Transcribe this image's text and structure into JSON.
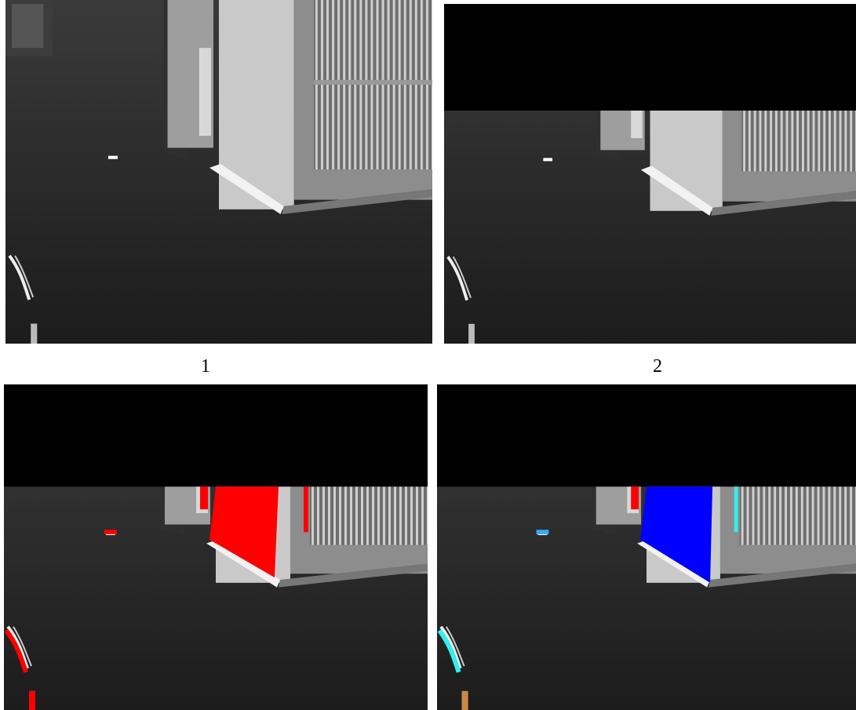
{
  "panel_labels": [
    "1",
    "2"
  ]
}
